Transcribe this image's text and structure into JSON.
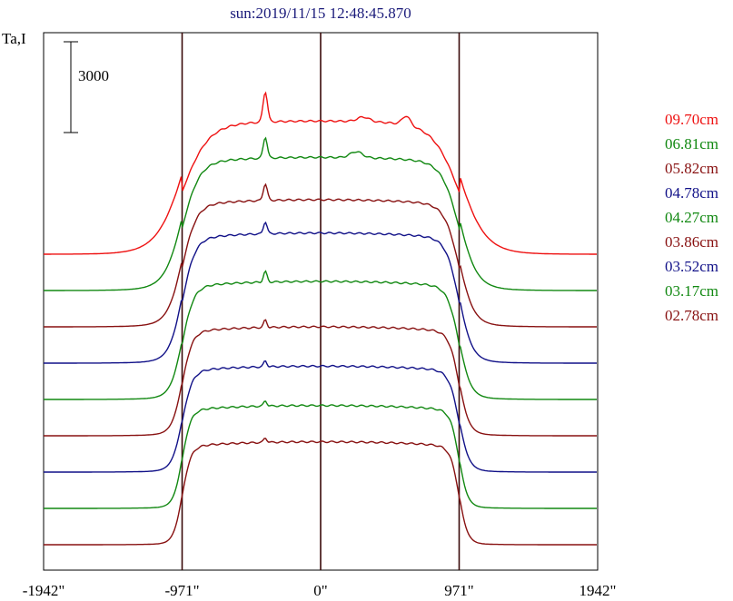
{
  "chart_data": {
    "type": "line",
    "title": "sun:2019/11/15 12:48:45.870",
    "ylabel": "Ta,I",
    "scale_bar_label": "3000",
    "scale_bar_value": 3000,
    "xlim": [
      -1942,
      1942
    ],
    "x_ticks": [
      {
        "value": -1942,
        "label": "-1942\""
      },
      {
        "value": -971,
        "label": "-971\""
      },
      {
        "value": 0,
        "label": "0\""
      },
      {
        "value": 971,
        "label": "971\""
      },
      {
        "value": 1942,
        "label": "1942\""
      }
    ],
    "vertical_lines": [
      -971,
      0,
      971
    ],
    "grid": false,
    "legend_position": "right",
    "series_offset": 1200,
    "series": [
      {
        "name": "09.70cm",
        "color": "#ee1111",
        "base": 0,
        "disk_level": 4400,
        "shoulder": 600,
        "limb_width": 90,
        "peaks": [
          {
            "x": -388,
            "h": 1000,
            "w": 22
          },
          {
            "x": 600,
            "h": 300,
            "w": 40
          },
          {
            "x": 300,
            "h": 150,
            "w": 60
          }
        ]
      },
      {
        "name": "06.81cm",
        "color": "#118811",
        "base": 0,
        "disk_level": 4400,
        "shoulder": 350,
        "limb_width": 60,
        "peaks": [
          {
            "x": -388,
            "h": 700,
            "w": 20
          },
          {
            "x": 250,
            "h": 200,
            "w": 60
          }
        ]
      },
      {
        "name": "05.82cm",
        "color": "#881111",
        "base": 0,
        "disk_level": 4200,
        "shoulder": 250,
        "limb_width": 50,
        "peaks": [
          {
            "x": -388,
            "h": 550,
            "w": 20
          }
        ]
      },
      {
        "name": "04.78cm",
        "color": "#111188",
        "base": 0,
        "disk_level": 4300,
        "shoulder": 200,
        "limb_width": 45,
        "peaks": [
          {
            "x": -388,
            "h": 400,
            "w": 18
          }
        ]
      },
      {
        "name": "04.27cm",
        "color": "#118811",
        "base": 0,
        "disk_level": 3900,
        "shoulder": 150,
        "limb_width": 40,
        "peaks": [
          {
            "x": -388,
            "h": 350,
            "w": 18
          }
        ]
      },
      {
        "name": "03.86cm",
        "color": "#881111",
        "base": 0,
        "disk_level": 3600,
        "shoulder": 120,
        "limb_width": 35,
        "peaks": [
          {
            "x": -388,
            "h": 250,
            "w": 16
          }
        ]
      },
      {
        "name": "03.52cm",
        "color": "#111188",
        "base": 0,
        "disk_level": 3500,
        "shoulder": 100,
        "limb_width": 35,
        "peaks": [
          {
            "x": -388,
            "h": 200,
            "w": 16
          }
        ]
      },
      {
        "name": "03.17cm",
        "color": "#118811",
        "base": 0,
        "disk_level": 3400,
        "shoulder": 80,
        "limb_width": 30,
        "peaks": [
          {
            "x": -388,
            "h": 180,
            "w": 16
          }
        ]
      },
      {
        "name": "02.78cm",
        "color": "#881111",
        "base": 0,
        "disk_level": 3400,
        "shoulder": 60,
        "limb_width": 30,
        "peaks": [
          {
            "x": -388,
            "h": 150,
            "w": 16
          }
        ]
      }
    ]
  }
}
